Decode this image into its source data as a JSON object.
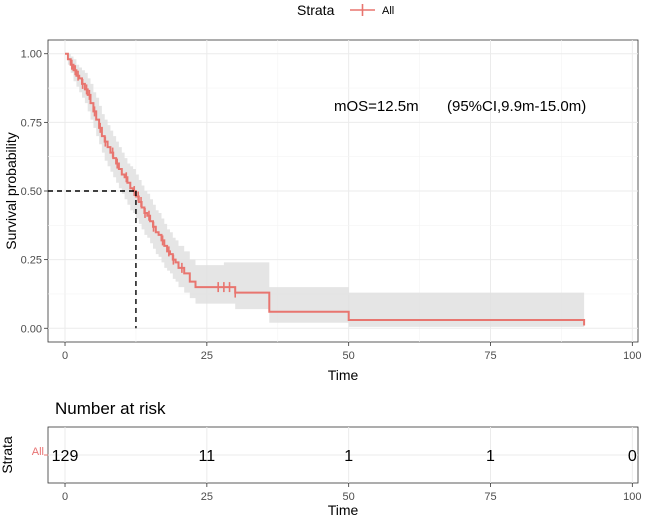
{
  "colors": {
    "curve": "#e8756f",
    "ci_band": "#e0e0e0",
    "grid": "#ebebeb",
    "panel_border": "#333333"
  },
  "legend": {
    "title": "Strata",
    "label": "All"
  },
  "annotation": {
    "mos": "mOS=12.5m",
    "ci": "(95%CI,9.9m-15.0m)"
  },
  "chart_data": [
    {
      "type": "line",
      "title": "",
      "xlabel": "Time",
      "ylabel": "Survival probability",
      "xlim": [
        -3,
        101
      ],
      "ylim": [
        -0.05,
        1.05
      ],
      "x_ticks": [
        0,
        25,
        50,
        75,
        100
      ],
      "x_tick_labels": [
        "0",
        "25",
        "50",
        "75",
        "100"
      ],
      "y_ticks": [
        0,
        0.25,
        0.5,
        0.75,
        1.0
      ],
      "y_tick_labels": [
        "0.00",
        "0.25",
        "0.50",
        "0.75",
        "1.00"
      ],
      "grid": true,
      "median_survival": 12.5,
      "median_ci": [
        9.9,
        15.0
      ],
      "series": [
        {
          "name": "All",
          "step_x": [
            0,
            0.5,
            1,
            1.5,
            2,
            2.5,
            3,
            3.5,
            4,
            4.5,
            5,
            5.5,
            6,
            6.5,
            7,
            7.5,
            8,
            8.5,
            9,
            9.5,
            10,
            10.5,
            11,
            11.5,
            12,
            12.5,
            13,
            13.5,
            14,
            14.5,
            15,
            15.5,
            16,
            16.5,
            17,
            17.5,
            18,
            18.5,
            19,
            19.5,
            20,
            21,
            22,
            23,
            25,
            28,
            30,
            36,
            50,
            91.5
          ],
          "survival": [
            1.0,
            0.98,
            0.96,
            0.94,
            0.92,
            0.91,
            0.89,
            0.87,
            0.85,
            0.82,
            0.79,
            0.76,
            0.73,
            0.7,
            0.68,
            0.66,
            0.64,
            0.62,
            0.6,
            0.58,
            0.56,
            0.55,
            0.53,
            0.51,
            0.5,
            0.48,
            0.46,
            0.44,
            0.42,
            0.41,
            0.39,
            0.37,
            0.35,
            0.34,
            0.32,
            0.3,
            0.28,
            0.27,
            0.25,
            0.24,
            0.22,
            0.2,
            0.17,
            0.15,
            0.15,
            0.15,
            0.13,
            0.06,
            0.03,
            0.01
          ],
          "ci_lower": [
            1.0,
            0.96,
            0.93,
            0.9,
            0.88,
            0.86,
            0.84,
            0.82,
            0.79,
            0.76,
            0.73,
            0.7,
            0.67,
            0.64,
            0.61,
            0.59,
            0.57,
            0.55,
            0.53,
            0.51,
            0.49,
            0.47,
            0.45,
            0.43,
            0.42,
            0.4,
            0.38,
            0.36,
            0.34,
            0.33,
            0.31,
            0.29,
            0.27,
            0.26,
            0.24,
            0.22,
            0.21,
            0.2,
            0.18,
            0.17,
            0.15,
            0.13,
            0.11,
            0.09,
            0.09,
            0.09,
            0.07,
            0.02,
            0.005,
            0.0
          ],
          "ci_upper": [
            1.0,
            1.0,
            0.99,
            0.98,
            0.96,
            0.95,
            0.94,
            0.93,
            0.91,
            0.89,
            0.86,
            0.84,
            0.81,
            0.78,
            0.76,
            0.74,
            0.72,
            0.7,
            0.68,
            0.66,
            0.64,
            0.62,
            0.6,
            0.59,
            0.58,
            0.56,
            0.54,
            0.52,
            0.5,
            0.49,
            0.47,
            0.45,
            0.43,
            0.42,
            0.4,
            0.38,
            0.36,
            0.35,
            0.33,
            0.32,
            0.3,
            0.28,
            0.25,
            0.23,
            0.23,
            0.24,
            0.24,
            0.15,
            0.13,
            0.13
          ],
          "censor_times": [
            1.2,
            1.8,
            2.3,
            3.1,
            3.8,
            4.3,
            5.2,
            6.2,
            7.1,
            8.4,
            9.2,
            10.8,
            12.2,
            12.9,
            13.4,
            14.1,
            14.8,
            15.6,
            17.2,
            18.3,
            19.1,
            20.6,
            27,
            28,
            29,
            30
          ]
        }
      ],
      "risk_table": {
        "title": "Number at risk",
        "strata_axis_label": "Strata",
        "strata": [
          "All"
        ],
        "times": [
          0,
          25,
          50,
          75,
          100
        ],
        "counts": [
          "129",
          "11",
          "1",
          "1",
          "0"
        ],
        "xlabel": "Time",
        "x_tick_labels": [
          "0",
          "25",
          "50",
          "75",
          "100"
        ]
      }
    }
  ]
}
